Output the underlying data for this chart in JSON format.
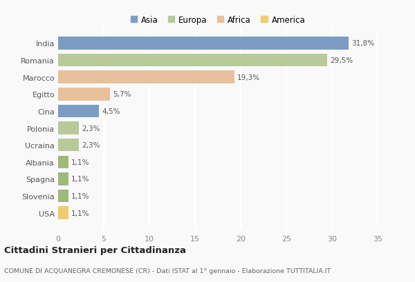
{
  "categories": [
    "India",
    "Romania",
    "Marocco",
    "Egitto",
    "Cina",
    "Polonia",
    "Ucraina",
    "Albania",
    "Spagna",
    "Slovenia",
    "USA"
  ],
  "values": [
    31.8,
    29.5,
    19.3,
    5.7,
    4.5,
    2.3,
    2.3,
    1.1,
    1.1,
    1.1,
    1.1
  ],
  "labels": [
    "31,8%",
    "29,5%",
    "19,3%",
    "5,7%",
    "4,5%",
    "2,3%",
    "2,3%",
    "1,1%",
    "1,1%",
    "1,1%",
    "1,1%"
  ],
  "bar_colors": [
    "#7b9dc4",
    "#b8c99a",
    "#e8c09a",
    "#e8c09a",
    "#7b9dc4",
    "#b8c99a",
    "#b8c99a",
    "#a0b87a",
    "#a0b87a",
    "#a0b87a",
    "#f0cc70"
  ],
  "legend_labels": [
    "Asia",
    "Europa",
    "Africa",
    "America"
  ],
  "legend_colors": [
    "#7b9dc4",
    "#b8c99a",
    "#e8c09a",
    "#f0cc70"
  ],
  "xlim": [
    0,
    35
  ],
  "xticks": [
    0,
    5,
    10,
    15,
    20,
    25,
    30,
    35
  ],
  "title": "Cittadini Stranieri per Cittadinanza",
  "subtitle": "COMUNE DI ACQUANEGRA CREMONESE (CR) - Dati ISTAT al 1° gennaio - Elaborazione TUTTITALIA.IT",
  "background_color": "#f9f9f9",
  "grid_color": "#ffffff",
  "bar_height": 0.75
}
